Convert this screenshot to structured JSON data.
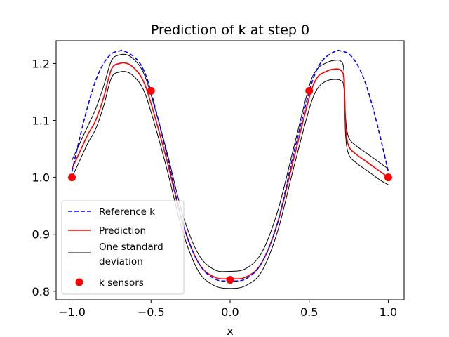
{
  "chart_data": {
    "type": "line",
    "title": "Prediction of k at step 0",
    "xlabel": "x",
    "ylabel": "",
    "xlim": [
      -1.1,
      1.1
    ],
    "ylim": [
      0.785,
      1.24
    ],
    "x_ticks": [
      -1.0,
      -0.5,
      0.0,
      0.5,
      1.0
    ],
    "x_tick_labels": [
      "−1.0",
      "−0.5",
      "0.0",
      "0.5",
      "1.0"
    ],
    "y_ticks": [
      0.8,
      0.9,
      1.0,
      1.1,
      1.2
    ],
    "y_tick_labels": [
      "0.8",
      "0.9",
      "1.0",
      "1.1",
      "1.2"
    ],
    "legend_position": "lower-left",
    "series": [
      {
        "name": "Reference k",
        "style": "dashed",
        "color": "#0000ff",
        "x": [
          -1.0,
          -0.95,
          -0.9,
          -0.85,
          -0.8,
          -0.75,
          -0.7,
          -0.67,
          -0.6,
          -0.55,
          -0.5,
          -0.4,
          -0.3,
          -0.2,
          -0.1,
          0.0,
          0.1,
          0.2,
          0.3,
          0.4,
          0.5,
          0.55,
          0.6,
          0.67,
          0.7,
          0.75,
          0.8,
          0.85,
          0.9,
          0.95,
          1.0
        ],
        "values": [
          1.01,
          1.07,
          1.125,
          1.17,
          1.2,
          1.217,
          1.222,
          1.222,
          1.21,
          1.19,
          1.15,
          1.04,
          0.92,
          0.85,
          0.822,
          0.818,
          0.822,
          0.85,
          0.92,
          1.04,
          1.15,
          1.19,
          1.21,
          1.222,
          1.222,
          1.217,
          1.2,
          1.17,
          1.125,
          1.07,
          1.01
        ]
      },
      {
        "name": "Prediction",
        "style": "solid",
        "color": "#ff0000",
        "x": [
          -1.0,
          -0.95,
          -0.9,
          -0.85,
          -0.8,
          -0.75,
          -0.7,
          -0.65,
          -0.6,
          -0.55,
          -0.5,
          -0.4,
          -0.3,
          -0.2,
          -0.1,
          0.0,
          0.1,
          0.2,
          0.3,
          0.4,
          0.5,
          0.55,
          0.6,
          0.65,
          0.7,
          0.72,
          0.73,
          0.75,
          0.8,
          0.85,
          0.9,
          0.95,
          1.0
        ],
        "values": [
          1.015,
          1.045,
          1.075,
          1.1,
          1.14,
          1.19,
          1.2,
          1.2,
          1.19,
          1.17,
          1.13,
          1.03,
          0.92,
          0.85,
          0.825,
          0.822,
          0.825,
          0.85,
          0.92,
          1.03,
          1.14,
          1.175,
          1.185,
          1.19,
          1.188,
          1.17,
          1.09,
          1.055,
          1.04,
          1.03,
          1.02,
          1.01,
          1.0
        ]
      },
      {
        "name": "One standard deviation",
        "style": "solid",
        "color": "#000000",
        "x": [
          -1.0,
          -0.95,
          -0.9,
          -0.85,
          -0.8,
          -0.75,
          -0.7,
          -0.65,
          -0.6,
          -0.55,
          -0.5,
          -0.4,
          -0.3,
          -0.2,
          -0.1,
          0.0,
          0.1,
          0.2,
          0.3,
          0.4,
          0.5,
          0.55,
          0.6,
          0.65,
          0.7,
          0.72,
          0.73,
          0.75,
          0.8,
          0.85,
          0.9,
          0.95,
          1.0
        ],
        "values": [
          1.03,
          1.06,
          1.09,
          1.12,
          1.16,
          1.205,
          1.215,
          1.215,
          1.205,
          1.185,
          1.145,
          1.045,
          0.935,
          0.865,
          0.838,
          0.835,
          0.84,
          0.868,
          0.94,
          1.05,
          1.16,
          1.19,
          1.2,
          1.205,
          1.204,
          1.185,
          1.105,
          1.07,
          1.055,
          1.045,
          1.035,
          1.025,
          1.015
        ]
      },
      {
        "name": "One standard deviation (lower)",
        "style": "solid",
        "color": "#000000",
        "x": [
          -1.0,
          -0.95,
          -0.9,
          -0.85,
          -0.8,
          -0.75,
          -0.7,
          -0.65,
          -0.6,
          -0.55,
          -0.5,
          -0.4,
          -0.3,
          -0.2,
          -0.1,
          0.0,
          0.1,
          0.2,
          0.3,
          0.4,
          0.5,
          0.55,
          0.6,
          0.65,
          0.7,
          0.72,
          0.73,
          0.75,
          0.8,
          0.85,
          0.9,
          0.95,
          1.0
        ],
        "values": [
          1.0,
          1.03,
          1.06,
          1.085,
          1.125,
          1.175,
          1.185,
          1.185,
          1.175,
          1.155,
          1.115,
          1.015,
          0.905,
          0.835,
          0.81,
          0.805,
          0.81,
          0.835,
          0.905,
          1.015,
          1.12,
          1.155,
          1.168,
          1.172,
          1.17,
          1.155,
          1.075,
          1.04,
          1.025,
          1.015,
          1.005,
          0.995,
          0.987
        ]
      },
      {
        "name": "k sensors",
        "style": "markers",
        "color": "#ff0000",
        "x": [
          -1.0,
          -0.5,
          0.0,
          0.5,
          1.0
        ],
        "values": [
          1.0,
          1.152,
          0.82,
          1.152,
          1.0
        ]
      }
    ],
    "legend": [
      {
        "label": "Reference k",
        "line1": "Reference k",
        "line2": "",
        "style": "dashed",
        "color": "#0000ff"
      },
      {
        "label": "Prediction",
        "line1": "Prediction",
        "line2": "",
        "style": "solid",
        "color": "#ff0000"
      },
      {
        "label": "One standard deviation",
        "line1": "One standard",
        "line2": "deviation",
        "style": "thin",
        "color": "#000000"
      },
      {
        "label": "k sensors",
        "line1": "k sensors",
        "line2": "",
        "style": "marker",
        "color": "#ff0000"
      }
    ]
  }
}
